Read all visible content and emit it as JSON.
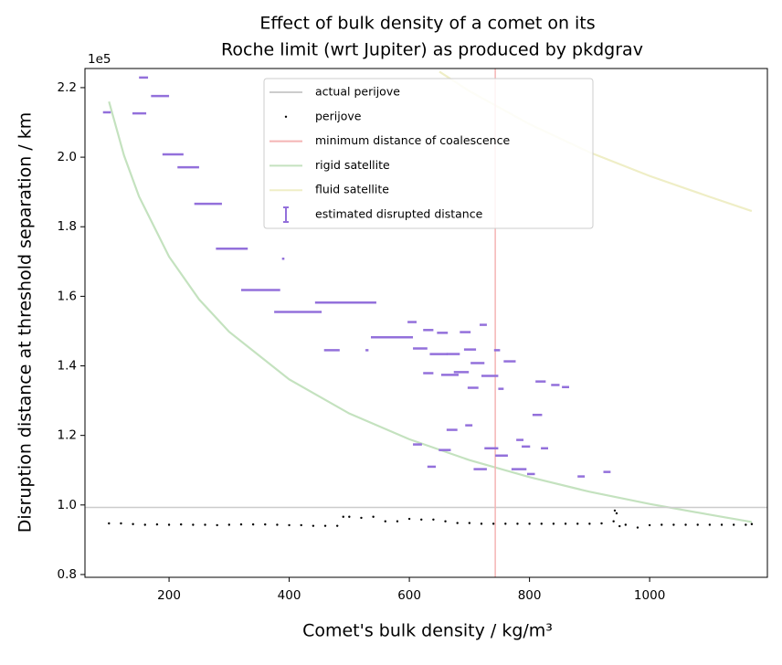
{
  "chart_data": {
    "type": "scatter",
    "title": [
      "Effect of bulk density of a comet on its",
      "Roche limit (wrt Jupiter) as produced by pkdgrav"
    ],
    "xlabel": "Comet's bulk density / kg/m³",
    "ylabel": "Disruption distance at threshold separation / km",
    "y_offset_label": "1e5",
    "xlim": [
      60,
      1196
    ],
    "ylim": [
      79200,
      225500
    ],
    "xticks": [
      200,
      400,
      600,
      800,
      1000
    ],
    "yticks": [
      {
        "value": 80000,
        "label": "0.8"
      },
      {
        "value": 100000,
        "label": "1.0"
      },
      {
        "value": 120000,
        "label": "1.2"
      },
      {
        "value": 140000,
        "label": "1.4"
      },
      {
        "value": 160000,
        "label": "1.6"
      },
      {
        "value": 180000,
        "label": "1.8"
      },
      {
        "value": 200000,
        "label": "2.0"
      },
      {
        "value": 220000,
        "label": "2.2"
      }
    ],
    "legend": "upper center",
    "series": [
      {
        "name": "actual perijove",
        "type": "hline",
        "color": "#cccccc",
        "value": 99300
      },
      {
        "name": "perijove",
        "type": "scatter",
        "color": "#000000",
        "x": [
          100,
          120,
          140,
          160,
          180,
          200,
          220,
          240,
          260,
          280,
          300,
          320,
          340,
          360,
          380,
          400,
          420,
          440,
          460,
          480,
          490,
          500,
          520,
          540,
          560,
          580,
          600,
          620,
          640,
          660,
          680,
          700,
          720,
          740,
          760,
          780,
          800,
          820,
          840,
          860,
          880,
          900,
          920,
          940,
          942,
          945,
          950,
          960,
          980,
          1000,
          1020,
          1040,
          1060,
          1080,
          1100,
          1120,
          1140,
          1160,
          1170
        ],
        "values": [
          94700,
          94700,
          94500,
          94300,
          94400,
          94300,
          94400,
          94300,
          94300,
          94200,
          94300,
          94400,
          94400,
          94400,
          94300,
          94200,
          94200,
          94000,
          94000,
          94000,
          96600,
          96600,
          96300,
          96600,
          95300,
          95300,
          96000,
          95800,
          95800,
          95300,
          94800,
          94800,
          94600,
          94600,
          94600,
          94600,
          94600,
          94600,
          94600,
          94600,
          94600,
          94600,
          94700,
          95300,
          98400,
          97600,
          93900,
          94300,
          93500,
          94200,
          94300,
          94300,
          94300,
          94300,
          94300,
          94300,
          94300,
          94300,
          94500
        ]
      },
      {
        "name": "minimum distance of coalescence",
        "type": "vline",
        "color": "#f4b4b4",
        "value": 743
      },
      {
        "name": "rigid satellite",
        "type": "line",
        "color": "#c4e2bf",
        "x": [
          100,
          125,
          150,
          200,
          250,
          300,
          400,
          500,
          600,
          700,
          800,
          900,
          1000,
          1100,
          1170
        ],
        "values": [
          216000,
          200500,
          188700,
          171400,
          159100,
          149800,
          136100,
          126300,
          118900,
          112900,
          108000,
          103800,
          100300,
          97200,
          95100
        ]
      },
      {
        "name": "fluid satellite",
        "type": "line",
        "color": "#efeec6",
        "x": [
          650,
          700,
          800,
          900,
          1000,
          1100,
          1170
        ],
        "values": [
          224600,
          219000,
          209500,
          201400,
          194600,
          188600,
          184500
        ]
      },
      {
        "name": "estimated disrupted distance",
        "type": "errorbar",
        "color": "#9370db",
        "x_min": [
          90,
          150,
          139,
          170,
          189,
          214,
          242,
          278,
          320,
          388,
          375,
          443,
          458,
          527,
          536,
          597,
          606,
          623,
          623,
          634,
          646,
          653,
          662,
          674,
          684,
          691,
          697,
          702,
          717,
          720,
          741,
          748,
          757,
          606,
          630,
          649,
          662,
          693,
          707,
          725,
          743,
          770,
          778,
          787,
          796,
          805,
          819,
          810,
          836,
          854,
          880,
          923
        ],
        "x_max": [
          103,
          165,
          162,
          200,
          224,
          250,
          288,
          331,
          385,
          392,
          454,
          545,
          484,
          532,
          606,
          612,
          630,
          640,
          640,
          664,
          664,
          682,
          684,
          699,
          702,
          711,
          715,
          725,
          729,
          748,
          751,
          757,
          777,
          621,
          644,
          669,
          680,
          705,
          729,
          748,
          764,
          795,
          790,
          801,
          809,
          821,
          831,
          827,
          850,
          866,
          892,
          935
        ],
        "values": [
          212900,
          222900,
          212600,
          217600,
          200800,
          197100,
          186600,
          173700,
          161800,
          170800,
          155500,
          158200,
          144500,
          144500,
          148200,
          152600,
          145000,
          150300,
          137900,
          143400,
          149500,
          137400,
          143400,
          138200,
          149700,
          144700,
          133700,
          140800,
          151800,
          137100,
          144500,
          133400,
          141300,
          117400,
          111000,
          115800,
          121600,
          122900,
          110300,
          116300,
          114200,
          110300,
          118700,
          116800,
          108900,
          125900,
          116300,
          135500,
          134500,
          133900,
          108200,
          109500
        ]
      }
    ]
  }
}
